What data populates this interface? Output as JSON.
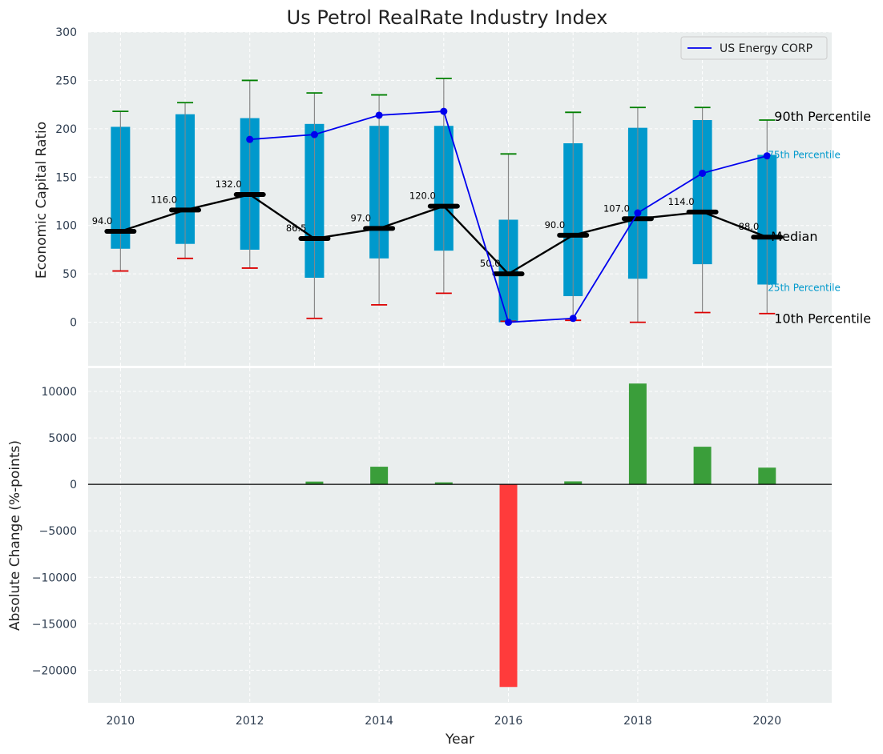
{
  "chart_data": [
    {
      "type": "box-range-line",
      "title": "Us Petrol RealRate Industry Index",
      "ylabel": "Economic Capital Ratio",
      "xlabel": "",
      "ylim": [
        -45,
        300
      ],
      "yticks": [
        0,
        50,
        100,
        150,
        200,
        250,
        300
      ],
      "years": [
        2010,
        2011,
        2012,
        2013,
        2014,
        2015,
        2016,
        2017,
        2018,
        2019,
        2020
      ],
      "p10": [
        53,
        66,
        56,
        4,
        18,
        30,
        1,
        2,
        0,
        10,
        9
      ],
      "p25": [
        76,
        81,
        75,
        46,
        66,
        74,
        0,
        27,
        45,
        60,
        39
      ],
      "median": [
        94.0,
        116.0,
        132.0,
        86.5,
        97.0,
        120.0,
        50.0,
        90.0,
        107.0,
        114.0,
        88.0
      ],
      "median_labels": [
        "94.0",
        "116.0",
        "132.0",
        "86.5",
        "97.0",
        "120.0",
        "50.0",
        "90.0",
        "107.0",
        "114.0",
        "88.0"
      ],
      "p75": [
        202,
        215,
        211,
        205,
        203,
        203,
        106,
        185,
        201,
        209,
        173
      ],
      "p90": [
        218,
        227,
        250,
        237,
        235,
        252,
        174,
        217,
        222,
        222,
        209
      ],
      "company": {
        "name": "US Energy CORP",
        "years": [
          2012,
          2013,
          2014,
          2015,
          2016,
          2017,
          2018,
          2019,
          2020
        ],
        "values": [
          189,
          194,
          214,
          218,
          0,
          4,
          113,
          154,
          172
        ]
      },
      "annotations": {
        "p90": "90th Percentile",
        "p75": "75th Percentile",
        "median": "Median",
        "p25": "25th Percentile",
        "p10": "10th Percentile"
      },
      "legend": [
        "US Energy CORP"
      ],
      "legend_position": "top-right",
      "colors": {
        "box": "#0099CC",
        "median": "#000000",
        "company": "#0000EE",
        "p90_cap": "#008000",
        "p10_cap": "#DD0000",
        "whisker": "#888888",
        "background": "#EAEEEE"
      }
    },
    {
      "type": "bar",
      "ylabel": "Absolute Change (%-points)",
      "xlabel": "Year",
      "ylim": [
        -23500,
        12500
      ],
      "yticks": [
        -20000,
        -15000,
        -10000,
        -5000,
        0,
        5000,
        10000
      ],
      "ytick_labels": [
        "−20000",
        "−15000",
        "−10000",
        "−5000",
        "0",
        "5000",
        "10000"
      ],
      "xticks": [
        2010,
        2012,
        2014,
        2016,
        2018,
        2020
      ],
      "years": [
        2013,
        2014,
        2015,
        2016,
        2017,
        2018,
        2019,
        2020
      ],
      "values": [
        300,
        1900,
        220,
        -21800,
        320,
        10850,
        4050,
        1800
      ],
      "colors": {
        "positive": "#3A9E3A",
        "negative": "#FF3B3B",
        "zero_line": "#000000"
      }
    }
  ]
}
